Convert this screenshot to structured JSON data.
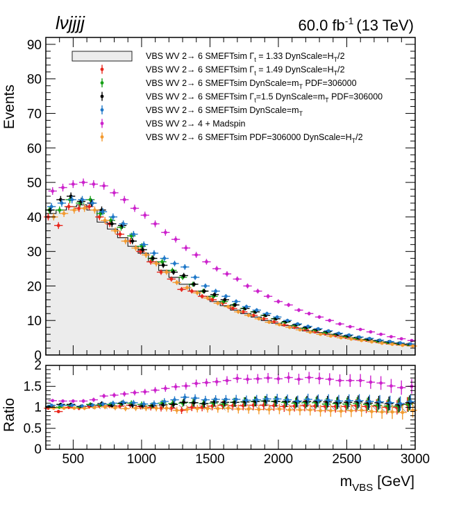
{
  "chart_data": [
    {
      "type": "histogram",
      "name": "main",
      "header": {
        "channel": "lνjjjj",
        "luminosity": "60.0 fb",
        "lumi_exponent": "-1",
        "energy": "(13 TeV)"
      },
      "ylabel": "Events",
      "ylim": [
        0,
        92
      ],
      "yticks": [
        "0",
        "10",
        "20",
        "30",
        "40",
        "50",
        "60",
        "70",
        "80",
        "90"
      ],
      "xlim": [
        300,
        3000
      ],
      "bin_edges": [
        300,
        375,
        450,
        525,
        600,
        675,
        750,
        825,
        900,
        975,
        1050,
        1125,
        1200,
        1275,
        1350,
        1425,
        1500,
        1575,
        1650,
        1725,
        1800,
        1875,
        1950,
        2025,
        2100,
        2175,
        2250,
        2325,
        2400,
        2475,
        2550,
        2625,
        2700,
        2775,
        2850,
        2925,
        3000
      ],
      "series": [
        {
          "name": "VBS WV 2→ 6 SMEFTsim Γt = 1.33 DynScale=HT/2",
          "style": "filled-hist",
          "color": "#ececec",
          "values": [
            41,
            42,
            43,
            43.5,
            42,
            38.5,
            36.5,
            34,
            31.5,
            29.5,
            27,
            24.5,
            22.5,
            20.5,
            18.5,
            17,
            15.5,
            14.3,
            13,
            12,
            11,
            10,
            9.2,
            8.5,
            7.8,
            7,
            6.5,
            6,
            5.5,
            5,
            4.5,
            4.2,
            3.8,
            3.5,
            3.2,
            2.8
          ]
        },
        {
          "name": "VBS WV 2→ 6 SMEFTsim Γt = 1.49 DynScale=HT/2",
          "color": "#e8261c",
          "values": [
            40,
            37.5,
            43,
            42.5,
            43,
            40,
            38,
            35,
            33,
            30,
            27,
            24,
            22,
            19,
            18.5,
            17,
            16,
            15,
            13.5,
            12.5,
            11.5,
            10.5,
            9.6,
            8.7,
            8,
            7.3,
            6.7,
            6.1,
            5.6,
            5.1,
            4.7,
            4.3,
            3.9,
            3.5,
            3.2,
            3
          ]
        },
        {
          "name": "VBS WV 2→ 6 SMEFTsim DynScale=mT PDF=306000",
          "color": "#16a016",
          "values": [
            42,
            42,
            45,
            44,
            45,
            41,
            39,
            37,
            34.5,
            31.5,
            28,
            27,
            24.5,
            22.5,
            20.5,
            18.5,
            17,
            15.5,
            14.5,
            13.5,
            12.5,
            11.5,
            10.5,
            9.5,
            8.6,
            7.8,
            7.2,
            6.5,
            6,
            5.4,
            4.9,
            4.5,
            4,
            3.6,
            3.3,
            3
          ]
        },
        {
          "name": "VBS WV 2→ 6 SMEFTsim Γt=1.5 DynScale=mT PDF=306000",
          "color": "#000000",
          "values": [
            42,
            45,
            46,
            44.5,
            44,
            42,
            38,
            37.5,
            33,
            30.5,
            28,
            26,
            24,
            23,
            20.5,
            18.5,
            17.5,
            16,
            14.5,
            13.5,
            12.5,
            11.5,
            10.5,
            9.7,
            8.8,
            8,
            7.4,
            6.8,
            6.1,
            5.6,
            5.1,
            4.6,
            4.2,
            3.8,
            3.4,
            3.1
          ]
        },
        {
          "name": "VBS WV 2→ 6 SMEFTsim DynScale=mT",
          "color": "#1f78c8",
          "values": [
            43,
            44,
            45,
            45,
            44,
            41.5,
            40,
            38,
            35,
            32,
            29.5,
            28,
            26.5,
            25.5,
            22.5,
            20,
            18.5,
            17,
            15.5,
            14,
            13,
            12,
            11,
            10,
            9,
            8.3,
            7.6,
            7,
            6.3,
            5.8,
            5.2,
            4.8,
            4.3,
            3.9,
            3.5,
            3.2
          ]
        },
        {
          "name": "VBS WV 2→ 4 + Madspin",
          "color": "#cc22cc",
          "values": [
            47.5,
            48.5,
            49.5,
            50,
            49.5,
            49,
            47,
            45,
            42.5,
            40.5,
            38,
            35.5,
            33.5,
            31,
            29,
            27,
            25,
            23.5,
            22,
            20,
            18.5,
            17,
            15.5,
            14.5,
            13,
            12,
            11,
            10,
            9,
            8.2,
            7.4,
            6.7,
            6,
            5.3,
            4.7,
            4.2
          ]
        },
        {
          "name": "VBS WV 2→ 6 SMEFTsim PDF=306000 DynScale=HT/2",
          "color": "#f39a30",
          "values": [
            40,
            41,
            42,
            42.5,
            42,
            39,
            36,
            33,
            31,
            29,
            26.5,
            24,
            21,
            19.5,
            18,
            16.5,
            15,
            14,
            12.5,
            11.5,
            10.5,
            9.5,
            8.8,
            8,
            7.3,
            6.6,
            6,
            5.5,
            5,
            4.6,
            4.2,
            3.8,
            3.4,
            3.1,
            2.8,
            2.6
          ]
        }
      ]
    },
    {
      "type": "ratio",
      "name": "ratio",
      "ylabel": "Ratio",
      "ylim": [
        0,
        2
      ],
      "yticks": [
        "0",
        "0.5",
        "1",
        "1.5",
        "2"
      ],
      "xlabel": "m",
      "xlabel_sub": "VBS",
      "xlabel_unit": "[GeV]",
      "xlim": [
        300,
        3000
      ],
      "xticks": [
        "500",
        "1000",
        "1500",
        "2000",
        "2500",
        "3000"
      ],
      "band": "hatched reference uncertainty around 1",
      "series": [
        {
          "name": "Γt = 1.49 DynScale=HT/2",
          "color": "#e8261c",
          "values": [
            0.98,
            0.9,
            1.0,
            0.98,
            1.02,
            1.04,
            1.04,
            1.03,
            1.05,
            1.02,
            1.0,
            0.98,
            0.98,
            0.93,
            1.0,
            1.0,
            1.03,
            1.05,
            1.04,
            1.04,
            1.05,
            1.05,
            1.04,
            1.02,
            1.03,
            1.04,
            1.03,
            1.02,
            1.02,
            1.02,
            1.04,
            1.02,
            1.03,
            1.0,
            1.0,
            1.07
          ]
        },
        {
          "name": "DynScale=mT PDF=306000",
          "color": "#16a016",
          "values": [
            1.02,
            1.0,
            1.05,
            1.01,
            1.07,
            1.06,
            1.07,
            1.09,
            1.1,
            1.07,
            1.04,
            1.1,
            1.09,
            1.1,
            1.11,
            1.09,
            1.1,
            1.08,
            1.12,
            1.13,
            1.14,
            1.15,
            1.14,
            1.12,
            1.1,
            1.11,
            1.11,
            1.08,
            1.09,
            1.08,
            1.09,
            1.07,
            1.05,
            1.03,
            1.03,
            1.07
          ]
        },
        {
          "name": "Γt=1.5 DynScale=mT PDF=306000",
          "color": "#000000",
          "values": [
            1.02,
            1.07,
            1.07,
            1.02,
            1.05,
            1.09,
            1.04,
            1.1,
            1.05,
            1.03,
            1.04,
            1.06,
            1.07,
            1.12,
            1.11,
            1.09,
            1.13,
            1.12,
            1.12,
            1.13,
            1.14,
            1.15,
            1.14,
            1.14,
            1.13,
            1.14,
            1.14,
            1.13,
            1.11,
            1.12,
            1.13,
            1.1,
            1.11,
            1.09,
            1.06,
            1.11
          ]
        },
        {
          "name": "DynScale=mT",
          "color": "#1f78c8",
          "values": [
            1.05,
            1.05,
            1.05,
            1.03,
            1.05,
            1.08,
            1.1,
            1.12,
            1.11,
            1.08,
            1.09,
            1.14,
            1.18,
            1.24,
            1.22,
            1.18,
            1.19,
            1.19,
            1.19,
            1.17,
            1.18,
            1.2,
            1.2,
            1.18,
            1.15,
            1.19,
            1.17,
            1.17,
            1.15,
            1.16,
            1.16,
            1.14,
            1.13,
            1.11,
            1.09,
            1.14
          ]
        },
        {
          "name": "2→ 4 + Madspin",
          "color": "#cc22cc",
          "values": [
            1.16,
            1.15,
            1.15,
            1.15,
            1.18,
            1.27,
            1.29,
            1.32,
            1.35,
            1.37,
            1.41,
            1.45,
            1.49,
            1.51,
            1.57,
            1.59,
            1.61,
            1.64,
            1.69,
            1.67,
            1.68,
            1.7,
            1.68,
            1.71,
            1.67,
            1.71,
            1.69,
            1.67,
            1.64,
            1.64,
            1.64,
            1.6,
            1.58,
            1.51,
            1.47,
            1.5
          ]
        },
        {
          "name": "PDF=306000 DynScale=HT/2",
          "color": "#f39a30",
          "values": [
            0.98,
            0.98,
            0.98,
            0.98,
            1.0,
            1.01,
            0.99,
            0.97,
            0.98,
            0.98,
            0.98,
            0.98,
            0.93,
            0.95,
            0.97,
            0.97,
            0.97,
            0.98,
            0.96,
            0.96,
            0.95,
            0.95,
            0.96,
            0.94,
            0.94,
            0.94,
            0.92,
            0.92,
            0.91,
            0.92,
            0.93,
            0.9,
            0.89,
            0.89,
            0.88,
            0.93
          ]
        }
      ]
    }
  ],
  "legend": {
    "entries": [
      {
        "prefix": "VBS WV 2",
        "arrow": "→",
        "middle": " 6 SMEFTsim ",
        "gamma": "Γ",
        "gamma_sub": "t",
        "mid2": " = 1.33 DynScale=H",
        "sub2": "T",
        "suffix": "/2"
      },
      {
        "prefix": "VBS WV 2",
        "arrow": "→",
        "middle": " 6 SMEFTsim ",
        "gamma": "Γ",
        "gamma_sub": "t",
        "mid2": " = 1.49 DynScale=H",
        "sub2": "T",
        "suffix": "/2"
      },
      {
        "prefix": "VBS WV 2",
        "arrow": "→",
        "middle": " 6 SMEFTsim DynScale=m",
        "gamma": "",
        "gamma_sub": "",
        "mid2": "",
        "sub2": "T",
        "suffix": " PDF=306000"
      },
      {
        "prefix": "VBS WV 2",
        "arrow": "→",
        "middle": " 6 SMEFTsim ",
        "gamma": "Γ",
        "gamma_sub": "t",
        "mid2": "=1.5 DynScale=m",
        "sub2": "T",
        "suffix": " PDF=306000"
      },
      {
        "prefix": "VBS WV 2",
        "arrow": "→",
        "middle": " 6 SMEFTsim DynScale=m",
        "gamma": "",
        "gamma_sub": "",
        "mid2": "",
        "sub2": "T",
        "suffix": ""
      },
      {
        "prefix": "VBS WV 2",
        "arrow": "→",
        "middle": " 4 + Madspin",
        "gamma": "",
        "gamma_sub": "",
        "mid2": "",
        "sub2": "",
        "suffix": ""
      },
      {
        "prefix": "VBS WV 2",
        "arrow": "→",
        "middle": " 6 SMEFTsim PDF=306000 DynScale=H",
        "gamma": "",
        "gamma_sub": "",
        "mid2": "",
        "sub2": "T",
        "suffix": "/2"
      }
    ]
  }
}
